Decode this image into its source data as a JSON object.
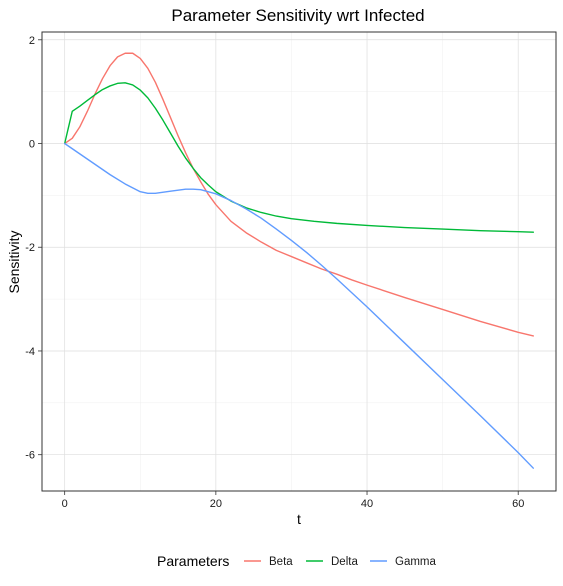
{
  "chart_data": {
    "type": "line",
    "title": "Parameter Sensitivity wrt Infected",
    "xlabel": "t",
    "ylabel": "Sensitivity",
    "xlim": [
      -3,
      65
    ],
    "ylim": [
      -6.7,
      2.15
    ],
    "x_ticks": [
      0,
      20,
      40,
      60
    ],
    "y_ticks": [
      2,
      0,
      -2,
      -4,
      -6
    ],
    "x_tick_labels": [
      "0",
      "20",
      "40",
      "60"
    ],
    "y_tick_labels": [
      "2",
      "0",
      "-2",
      "-4",
      "-6"
    ],
    "grid": true,
    "legend": {
      "title": "Parameters",
      "position": "bottom"
    },
    "series": [
      {
        "name": "Beta",
        "color": "#F8766D",
        "x": [
          0,
          1,
          2,
          3,
          4,
          5,
          6,
          7,
          8,
          9,
          10,
          11,
          12,
          13,
          14,
          15,
          16,
          17,
          18,
          19,
          20,
          22,
          24,
          26,
          28,
          30,
          32,
          34,
          36,
          38,
          40,
          45,
          50,
          55,
          60,
          62
        ],
        "y": [
          0,
          0.1,
          0.32,
          0.62,
          0.95,
          1.25,
          1.5,
          1.67,
          1.74,
          1.74,
          1.64,
          1.45,
          1.18,
          0.85,
          0.5,
          0.15,
          -0.18,
          -0.48,
          -0.74,
          -0.98,
          -1.18,
          -1.5,
          -1.72,
          -1.9,
          -2.06,
          -2.18,
          -2.3,
          -2.42,
          -2.52,
          -2.63,
          -2.73,
          -2.97,
          -3.2,
          -3.43,
          -3.64,
          -3.71
        ]
      },
      {
        "name": "Delta",
        "color": "#00BA38",
        "x": [
          0,
          1,
          2,
          3,
          4,
          5,
          6,
          7,
          8,
          9,
          10,
          11,
          12,
          13,
          14,
          15,
          16,
          17,
          18,
          19,
          20,
          22,
          24,
          26,
          28,
          30,
          33,
          36,
          40,
          45,
          50,
          55,
          60,
          62
        ],
        "y": [
          0,
          0.62,
          0.72,
          0.83,
          0.94,
          1.04,
          1.11,
          1.16,
          1.17,
          1.13,
          1.03,
          0.88,
          0.68,
          0.45,
          0.2,
          -0.05,
          -0.28,
          -0.48,
          -0.66,
          -0.8,
          -0.93,
          -1.11,
          -1.24,
          -1.33,
          -1.4,
          -1.45,
          -1.5,
          -1.54,
          -1.58,
          -1.62,
          -1.65,
          -1.68,
          -1.7,
          -1.71
        ]
      },
      {
        "name": "Gamma",
        "color": "#619CFF",
        "x": [
          0,
          2,
          4,
          6,
          8,
          10,
          11,
          12,
          14,
          16,
          17,
          18,
          20,
          22,
          24,
          26,
          28,
          30,
          32,
          34,
          36,
          40,
          45,
          50,
          55,
          60,
          62
        ],
        "y": [
          0,
          -0.2,
          -0.4,
          -0.6,
          -0.78,
          -0.93,
          -0.96,
          -0.96,
          -0.92,
          -0.88,
          -0.88,
          -0.89,
          -0.97,
          -1.1,
          -1.26,
          -1.44,
          -1.65,
          -1.87,
          -2.1,
          -2.35,
          -2.61,
          -3.15,
          -3.85,
          -4.55,
          -5.25,
          -5.96,
          -6.26
        ]
      }
    ]
  }
}
